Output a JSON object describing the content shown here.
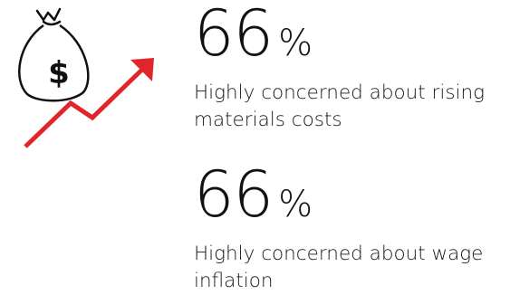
{
  "icons": {
    "money_bag": "money-bag-icon",
    "trend_arrow": "trend-up-arrow-icon",
    "currency_symbol": "$"
  },
  "colors": {
    "accent_red": "#e0262b",
    "ink": "#111111"
  },
  "stats": [
    {
      "value": "66",
      "unit": "%",
      "text": "Highly concerned about rising materials costs"
    },
    {
      "value": "66",
      "unit": "%",
      "text": "Highly concerned about wage inflation"
    }
  ]
}
